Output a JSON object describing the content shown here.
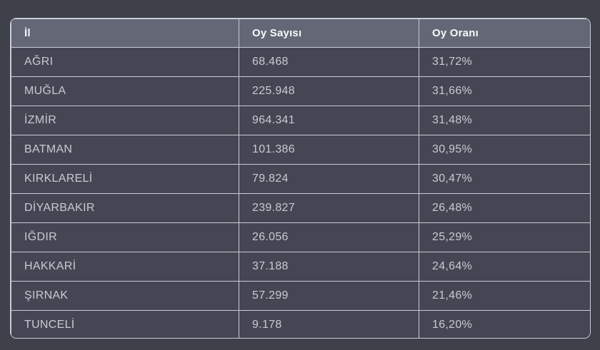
{
  "colors": {
    "page_background": "#3e414a",
    "row_background": "#444753",
    "header_background": "#646876",
    "border": "#c9ccd6",
    "header_text": "#f7f8fa",
    "body_text": "#c8cad2"
  },
  "table": {
    "columns": [
      {
        "label": "İl"
      },
      {
        "label": "Oy Sayısı"
      },
      {
        "label": "Oy Oranı"
      }
    ],
    "rows": [
      {
        "il": "AĞRI",
        "oy_sayisi": "68.468",
        "oy_orani": "31,72%"
      },
      {
        "il": "MUĞLA",
        "oy_sayisi": "225.948",
        "oy_orani": "31,66%"
      },
      {
        "il": "İZMİR",
        "oy_sayisi": "964.341",
        "oy_orani": "31,48%"
      },
      {
        "il": "BATMAN",
        "oy_sayisi": "101.386",
        "oy_orani": "30,95%"
      },
      {
        "il": "KIRKLARELİ",
        "oy_sayisi": "79.824",
        "oy_orani": "30,47%"
      },
      {
        "il": "DİYARBAKIR",
        "oy_sayisi": "239.827",
        "oy_orani": "26,48%"
      },
      {
        "il": "IĞDIR",
        "oy_sayisi": "26.056",
        "oy_orani": "25,29%"
      },
      {
        "il": "HAKKARİ",
        "oy_sayisi": "37.188",
        "oy_orani": "24,64%"
      },
      {
        "il": "ŞIRNAK",
        "oy_sayisi": "57.299",
        "oy_orani": "21,46%"
      },
      {
        "il": "TUNCELİ",
        "oy_sayisi": "9.178",
        "oy_orani": "16,20%"
      }
    ]
  },
  "chart_data": {
    "type": "table",
    "title": "",
    "columns": [
      "İl",
      "Oy Sayısı",
      "Oy Oranı"
    ],
    "rows": [
      [
        "AĞRI",
        "68.468",
        "31,72%"
      ],
      [
        "MUĞLA",
        "225.948",
        "31,66%"
      ],
      [
        "İZMİR",
        "964.341",
        "31,48%"
      ],
      [
        "BATMAN",
        "101.386",
        "30,95%"
      ],
      [
        "KIRKLARELİ",
        "79.824",
        "30,47%"
      ],
      [
        "DİYARBAKIR",
        "239.827",
        "26,48%"
      ],
      [
        "IĞDIR",
        "26.056",
        "25,29%"
      ],
      [
        "HAKKARİ",
        "37.188",
        "24,64%"
      ],
      [
        "ŞIRNAK",
        "57.299",
        "21,46%"
      ],
      [
        "TUNCELİ",
        "9.178",
        "16,20%"
      ]
    ],
    "vote_percentages_numeric": [
      31.72,
      31.66,
      31.48,
      30.95,
      30.47,
      26.48,
      25.29,
      24.64,
      21.46,
      16.2
    ],
    "vote_counts_numeric": [
      68468,
      225948,
      964341,
      101386,
      79824,
      239827,
      26056,
      37188,
      57299,
      9178
    ]
  }
}
